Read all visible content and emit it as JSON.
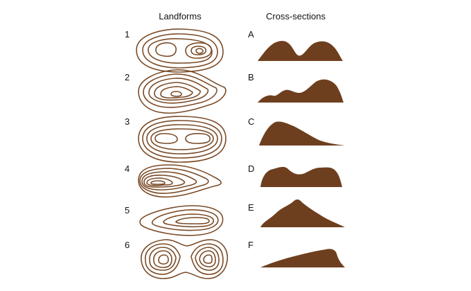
{
  "headers": {
    "landforms": "Landforms",
    "cross_sections": "Cross-sections"
  },
  "landforms": [
    {
      "label": "1"
    },
    {
      "label": "2"
    },
    {
      "label": "3"
    },
    {
      "label": "4"
    },
    {
      "label": "5"
    },
    {
      "label": "6"
    }
  ],
  "cross_sections": [
    {
      "label": "A"
    },
    {
      "label": "B"
    },
    {
      "label": "C"
    },
    {
      "label": "D"
    },
    {
      "label": "E"
    },
    {
      "label": "F"
    }
  ],
  "colors": {
    "contour": "#7a4a26",
    "terrain": "#6e3f1e",
    "text": "#111111"
  }
}
